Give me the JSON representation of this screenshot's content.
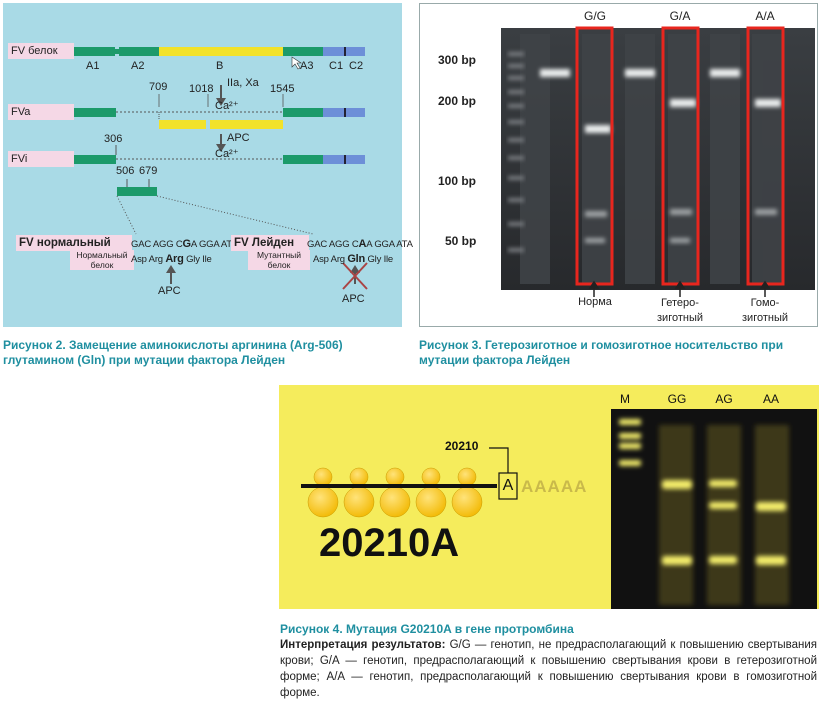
{
  "fig2": {
    "rows": {
      "fv_label": "FV белок",
      "fva_label": "FVa",
      "fvi_label": "FVi"
    },
    "domains": [
      "A1",
      "A2",
      "B",
      "A3",
      "C1",
      "C2"
    ],
    "annotations": {
      "n709": "709",
      "n1018": "1018",
      "n1545": "1545",
      "iia_xa": "IIa, Xa",
      "ca1": "Ca²⁺",
      "apc1": "APC",
      "n306": "306",
      "ca2": "Ca²⁺",
      "n506": "506",
      "n679": "679"
    },
    "normal": {
      "title": "FV нормальный",
      "protein": "Нормальный белок",
      "seq_pre": "GAC AGG C",
      "seq_mut": "G",
      "seq_post": "A GGA ATA",
      "aa_pre": "Asp Arg ",
      "aa_mut": "Arg",
      "aa_post": " Gly Ile",
      "apc": "APC"
    },
    "leiden": {
      "title": "FV Лейден",
      "protein": "Мутантный белок",
      "seq_pre": "GAC AGG C",
      "seq_mut": "A",
      "seq_post": "A GGA ATA",
      "aa_pre": "Asp Arg ",
      "aa_mut": "Gln",
      "aa_post": " Gly Ile",
      "apc": "APC"
    },
    "caption": "Рисунок 2.  Замещение аминокислоты аргинина (Arg-506) глутамином (Gln) при мутации фактора Лейден"
  },
  "fig3": {
    "lanes": [
      "G/G",
      "G/A",
      "A/A"
    ],
    "bp": [
      "300 bp",
      "200 bp",
      "100 bp",
      "50 bp"
    ],
    "genotypes": [
      {
        "line1": "Норма",
        "line2": ""
      },
      {
        "line1": "Гетеро-",
        "line2": "зиготный"
      },
      {
        "line1": "Гомо-",
        "line2": "зиготный"
      }
    ],
    "caption": "Рисунок 3.  Гетерозиготное и гомозиготное носительство при мутации фактора Лейден"
  },
  "fig4": {
    "pos_label": "20210",
    "nucleotide": "A",
    "polya": "AAAAA",
    "big_label": "20210A",
    "lanes": [
      "M",
      "GG",
      "AG",
      "AA"
    ],
    "caption": "Рисунок 4.  Мутация G20210A в гене протромбина",
    "interp_label": "Интерпретация результатов:",
    "interp_text": " G/G — генотип, не предрасполагающий к повышению свертывания крови; G/A — генотип, предрасполагающий к повышению свертывания крови в гетерозиготной форме; A/A — генотип, предрасполагающий к повышению свертывания крови в гомозиготной форме."
  },
  "colors": {
    "diagram_bg": "#a9dae6",
    "green": "#1c9a6a",
    "yellow": "#f2e22a",
    "blue": "#6d8fd8",
    "gel_dark": "#2e3236",
    "red_frame": "#e8261e",
    "fig4_bg": "#f5ec5c",
    "caption": "#1f8fa0"
  }
}
